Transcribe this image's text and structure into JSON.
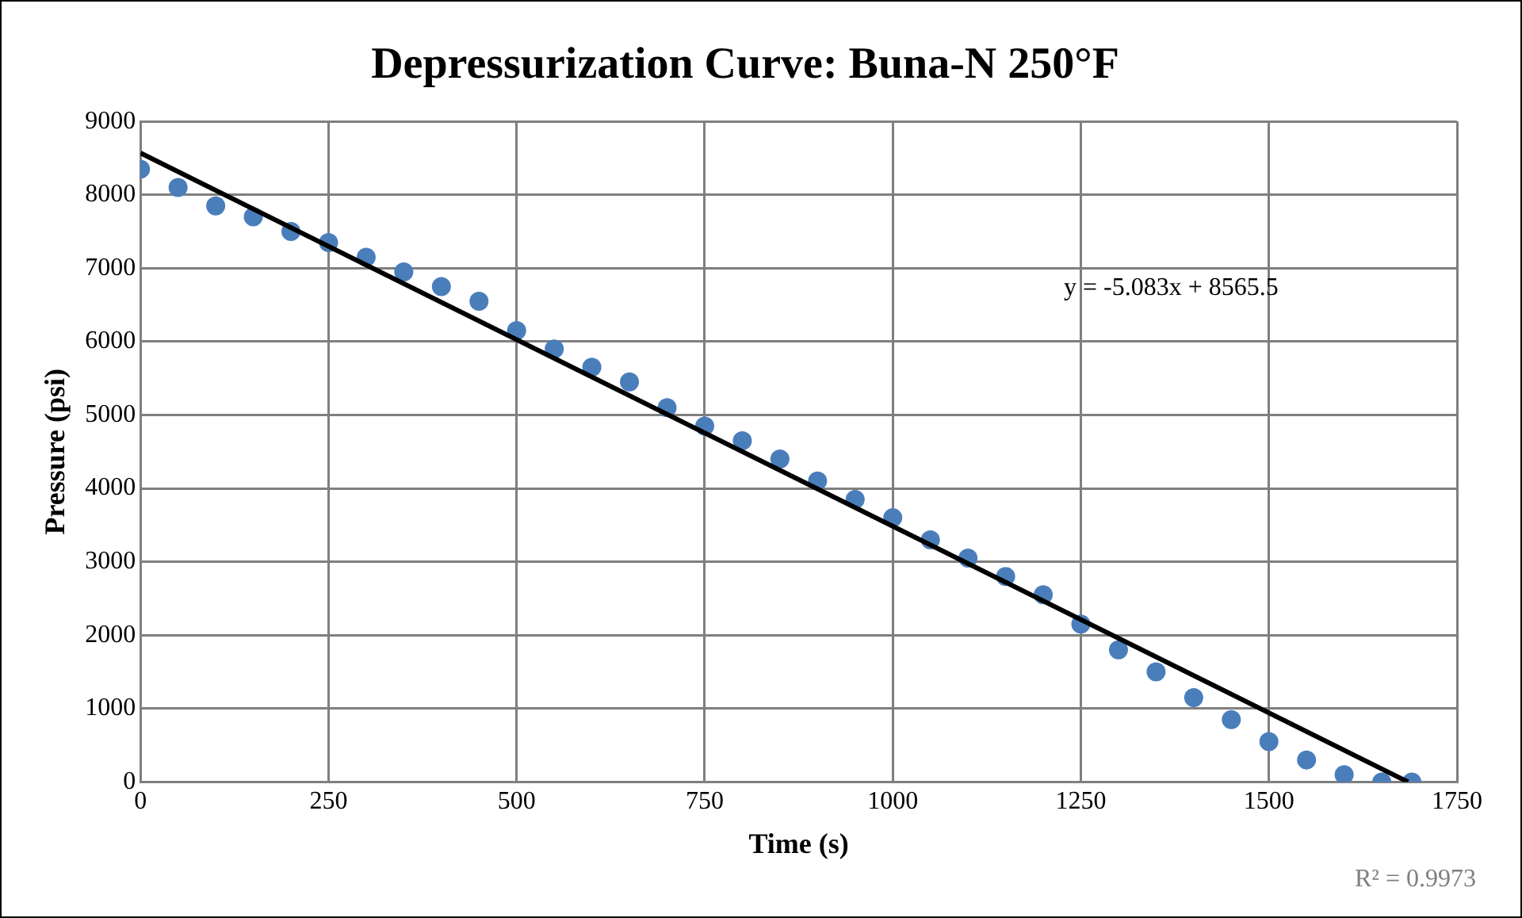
{
  "chart_data": {
    "type": "scatter",
    "title": "Depressurization Curve: Buna-N 250°F",
    "xlabel": "Time (s)",
    "ylabel": "Pressure (psi)",
    "x": [
      0,
      50,
      100,
      150,
      200,
      250,
      300,
      350,
      400,
      450,
      500,
      550,
      600,
      650,
      700,
      750,
      800,
      850,
      900,
      950,
      1000,
      1050,
      1100,
      1150,
      1200,
      1250,
      1300,
      1350,
      1400,
      1450,
      1500,
      1550,
      1600,
      1650,
      1690
    ],
    "series": [
      {
        "color": "#4a7ebb",
        "values": [
          8350,
          8100,
          7850,
          7700,
          7500,
          7350,
          7150,
          6950,
          6750,
          6550,
          6150,
          5900,
          5650,
          5450,
          5100,
          4850,
          4650,
          4400,
          4100,
          3850,
          3600,
          3300,
          3050,
          2800,
          2550,
          2150,
          1800,
          1500,
          1150,
          850,
          550,
          300,
          100,
          0,
          0
        ]
      },
      {
        "type": "line",
        "marker": "none",
        "color": "#000000",
        "x": [
          0,
          1685
        ],
        "values": [
          8570,
          0
        ]
      }
    ],
    "xlim": [
      0,
      1750
    ],
    "xticks": [
      0,
      250,
      500,
      750,
      1000,
      1250,
      1500,
      1750
    ],
    "ylim": [
      0,
      9000
    ],
    "yticks": [
      0,
      1000,
      2000,
      3000,
      4000,
      5000,
      6000,
      7000,
      8000,
      9000
    ],
    "grid": true,
    "legend": false,
    "marker": "circle",
    "annotations": [
      "y = -5.083x + 8565.5",
      "R² = 0.9973"
    ]
  }
}
